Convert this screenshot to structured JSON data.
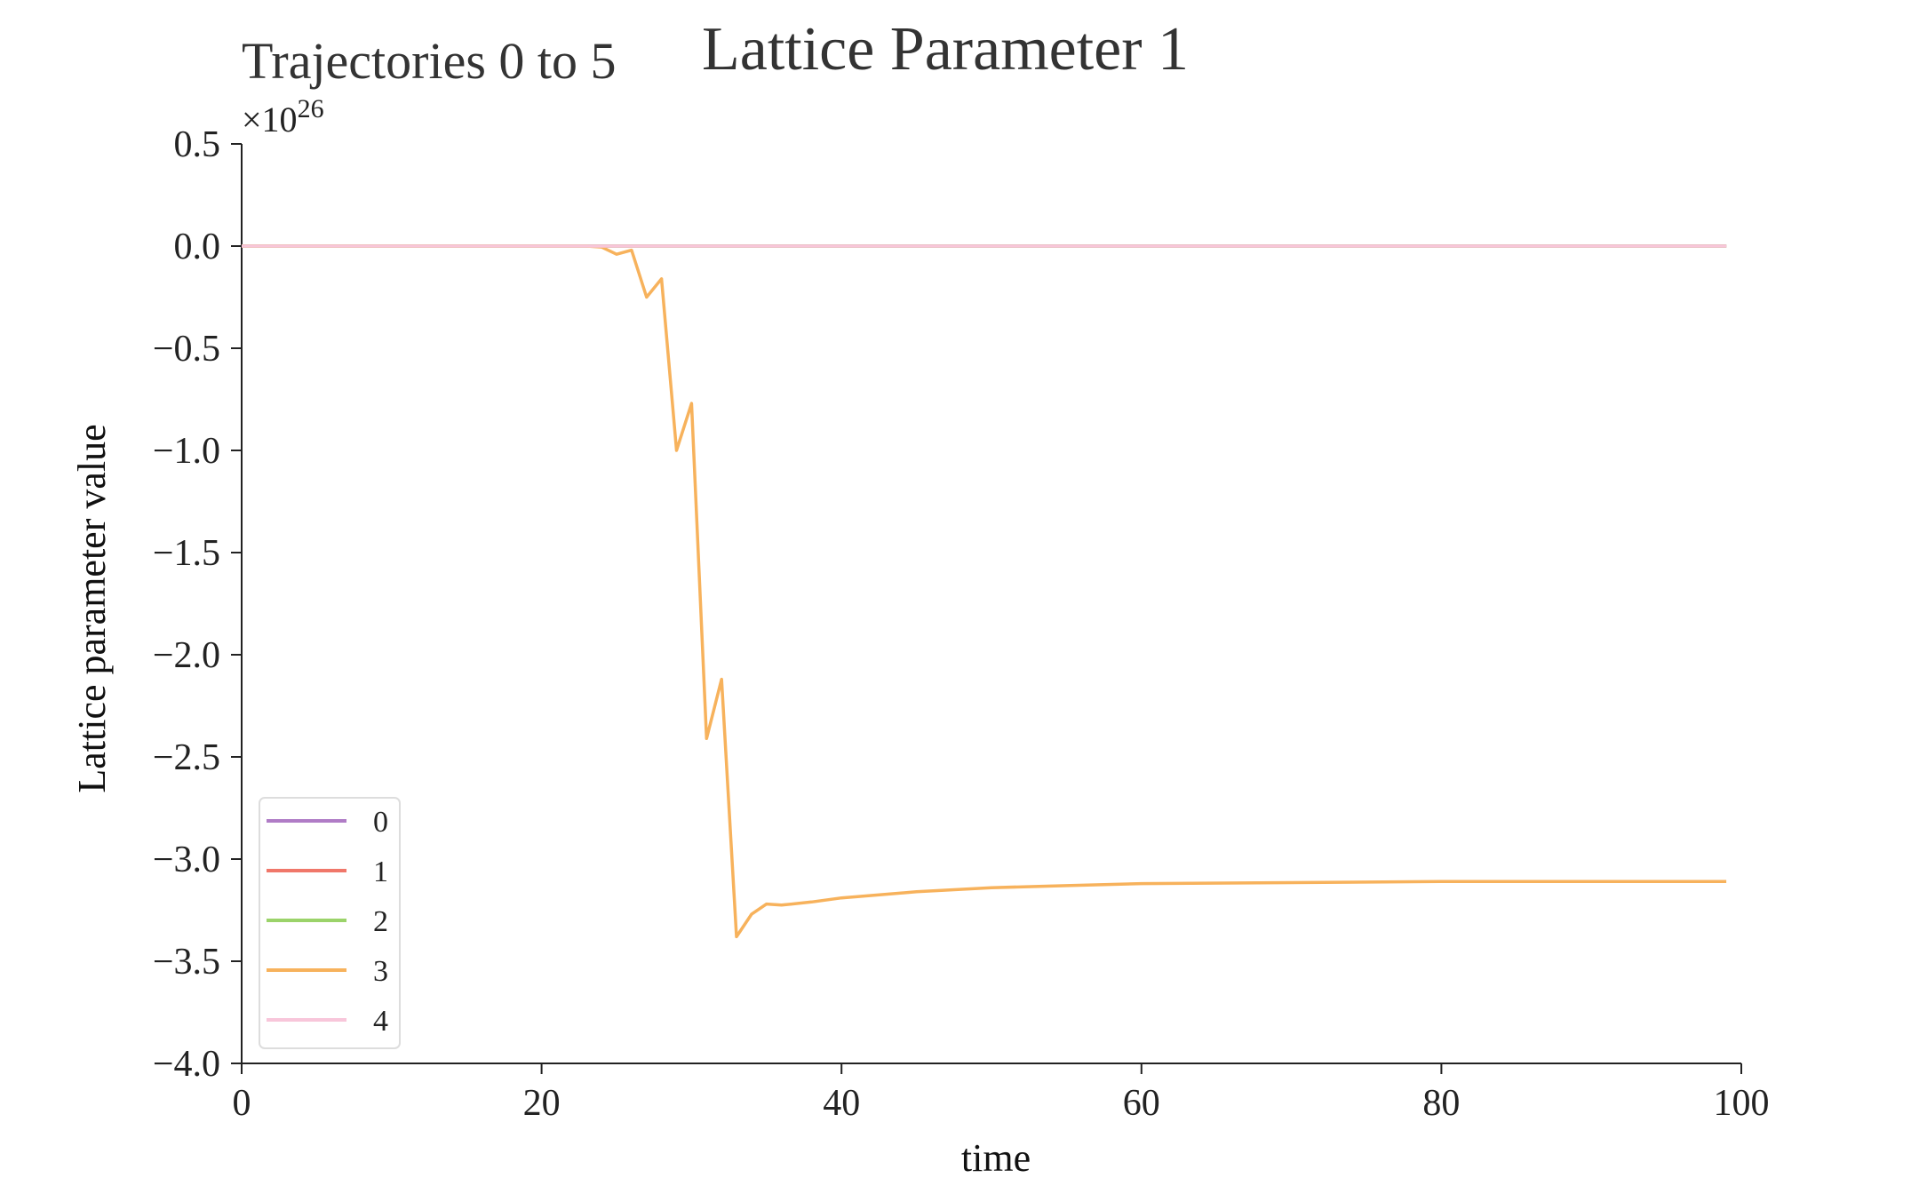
{
  "chart_data": {
    "type": "line",
    "title": "Lattice Parameter 1",
    "subtitle": "Trajectories 0 to 5",
    "xlabel": "time",
    "ylabel": "Lattice parameter value",
    "y_offset_base": "×10",
    "y_offset_exp": "26",
    "xlim": [
      0,
      100
    ],
    "ylim": [
      -4.0,
      0.5
    ],
    "x_ticks": [
      0,
      20,
      40,
      60,
      80,
      100
    ],
    "x_tick_labels": [
      "0",
      "20",
      "40",
      "60",
      "80",
      "100"
    ],
    "y_ticks": [
      0.5,
      0.0,
      -0.5,
      -1.0,
      -1.5,
      -2.0,
      -2.5,
      -3.0,
      -3.5,
      -4.0
    ],
    "y_tick_labels": [
      "0.5",
      "0.0",
      "−0.5",
      "−1.0",
      "−1.5",
      "−2.0",
      "−2.5",
      "−3.0",
      "−3.5",
      "−4.0"
    ],
    "grid": false,
    "legend_position": "lower-left",
    "series": [
      {
        "name": "0",
        "color": "#b07cc6",
        "x": [
          0,
          99
        ],
        "y": [
          0,
          0
        ]
      },
      {
        "name": "1",
        "color": "#f0776a",
        "x": [
          0,
          99
        ],
        "y": [
          0,
          0
        ]
      },
      {
        "name": "2",
        "color": "#9bd36a",
        "x": [
          0,
          99
        ],
        "y": [
          0,
          0
        ]
      },
      {
        "name": "3",
        "color": "#f7b25c",
        "x": [
          0,
          10,
          20,
          23,
          24,
          25,
          26,
          27,
          28,
          29,
          30,
          31,
          32,
          33,
          34,
          35,
          36,
          38,
          40,
          45,
          50,
          55,
          60,
          70,
          80,
          90,
          99
        ],
        "y": [
          0,
          0,
          0,
          0,
          -0.005,
          -0.04,
          -0.02,
          -0.25,
          -0.16,
          -1.0,
          -0.77,
          -2.41,
          -2.12,
          -3.38,
          -3.27,
          -3.22,
          -3.225,
          -3.21,
          -3.19,
          -3.16,
          -3.14,
          -3.13,
          -3.12,
          -3.115,
          -3.11,
          -3.11,
          -3.11
        ]
      },
      {
        "name": "4",
        "color": "#f8c6da",
        "x": [
          0,
          99
        ],
        "y": [
          0,
          0
        ]
      }
    ]
  }
}
